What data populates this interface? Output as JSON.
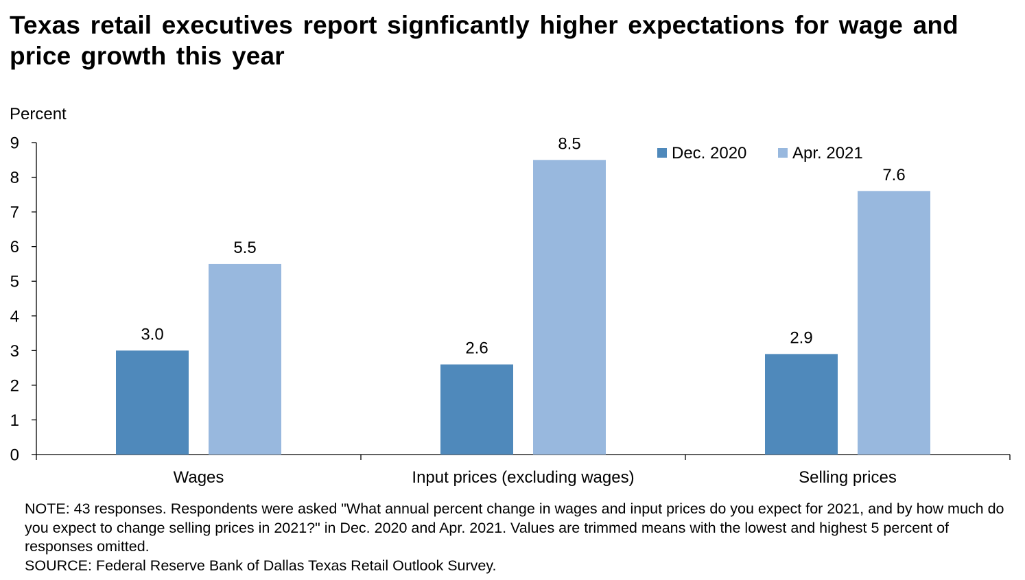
{
  "chart_data": {
    "type": "bar",
    "title": "Texas retail executives report signficantly higher expectations for wage and price growth this year",
    "ylabel": "Percent",
    "xlabel": "",
    "ylim": [
      0,
      9
    ],
    "yticks": [
      0,
      1,
      2,
      3,
      4,
      5,
      6,
      7,
      8,
      9
    ],
    "categories": [
      "Wages",
      "Input prices (excluding wages)",
      "Selling prices"
    ],
    "series": [
      {
        "name": "Dec. 2020",
        "values": [
          3.0,
          2.6,
          2.9
        ],
        "labels": [
          "3.0",
          "2.6",
          "2.9"
        ],
        "color": "#4f89bb"
      },
      {
        "name": "Apr. 2021",
        "values": [
          5.5,
          8.5,
          7.6
        ],
        "labels": [
          "5.5",
          "8.5",
          "7.6"
        ],
        "color": "#98b8de"
      }
    ],
    "grid": false,
    "legend_position": "top-right"
  },
  "note": "NOTE: 43 responses. Respondents were asked \"What annual percent change in wages and input prices do you expect for 2021, and by how much do you expect to change selling prices in 2021?\" in Dec. 2020 and Apr. 2021. Values are trimmed means with the lowest and highest 5 percent of responses omitted.",
  "source": "SOURCE: Federal Reserve Bank of Dallas Texas Retail Outlook Survey."
}
